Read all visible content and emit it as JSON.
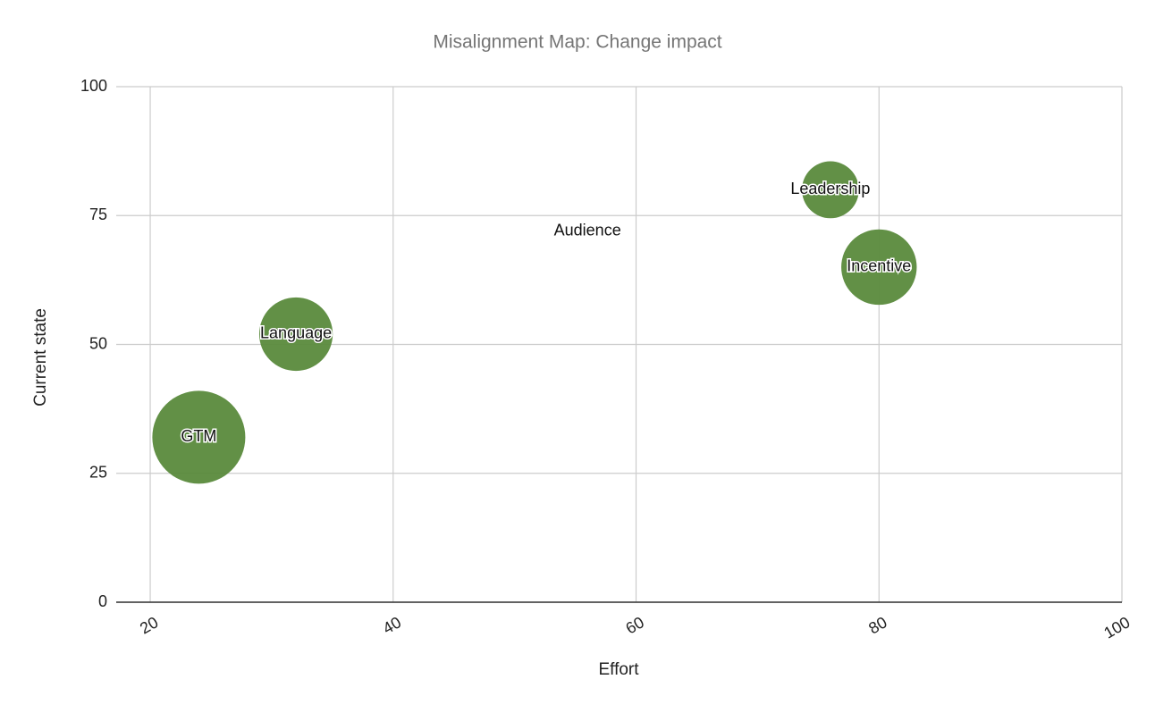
{
  "chart_data": {
    "type": "bubble",
    "title": "Misalignment Map: Change impact",
    "x_label": "Effort",
    "y_label": "Current state",
    "series": [
      {
        "color": "#5a8a3c",
        "labels": [
          "GTM",
          "Language",
          "Audience",
          "Leadership",
          "Incentive"
        ],
        "x": [
          24,
          32,
          56,
          76,
          80
        ],
        "values": [
          32,
          52,
          72,
          80,
          65
        ],
        "sizes": [
          10,
          8,
          1,
          6.3,
          8.2
        ]
      }
    ],
    "xlim": [
      17.2,
      100
    ],
    "xticks": [
      20,
      40,
      60,
      80,
      100
    ],
    "ylim": [
      0,
      100
    ],
    "yticks": [
      0,
      25,
      50,
      75,
      100
    ],
    "grid": true
  }
}
